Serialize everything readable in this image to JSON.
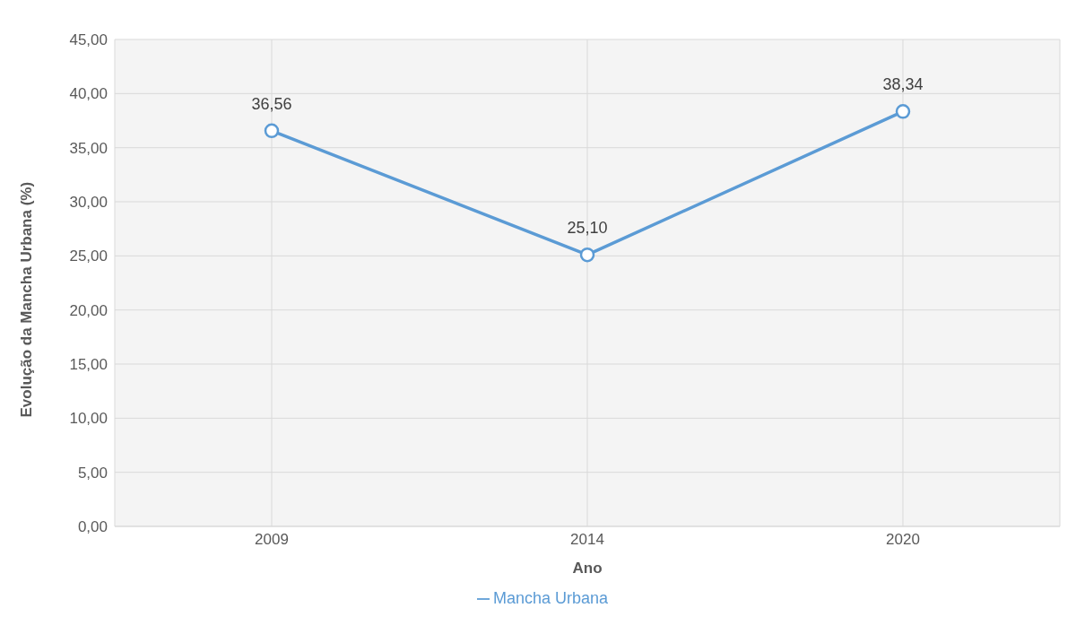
{
  "chart_data": {
    "type": "line",
    "xlabel": "Ano",
    "ylabel": "Evolução da Mancha Urbana (%)",
    "categories": [
      "2009",
      "2014",
      "2020"
    ],
    "series": [
      {
        "name": "Mancha Urbana",
        "color": "#5b9bd5",
        "values": [
          36.56,
          25.1,
          38.34
        ],
        "value_labels": [
          "36,56",
          "25,10",
          "38,34"
        ]
      }
    ],
    "ylim": [
      0,
      45
    ],
    "yticks": [
      {
        "value": 0,
        "label": "0,00"
      },
      {
        "value": 5,
        "label": "5,00"
      },
      {
        "value": 10,
        "label": "10,00"
      },
      {
        "value": 15,
        "label": "15,00"
      },
      {
        "value": 20,
        "label": "20,00"
      },
      {
        "value": 25,
        "label": "25,00"
      },
      {
        "value": 30,
        "label": "30,00"
      },
      {
        "value": 35,
        "label": "35,00"
      },
      {
        "value": 40,
        "label": "40,00"
      },
      {
        "value": 45,
        "label": "45,00"
      }
    ],
    "grid": true,
    "legend": "bottom",
    "marker": "circle",
    "line_style": "solid"
  }
}
